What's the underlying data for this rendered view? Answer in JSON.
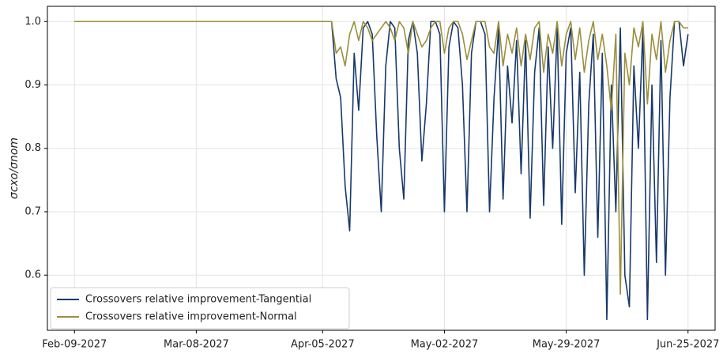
{
  "chart_data": {
    "type": "line",
    "y_label": "σcxo/σnom",
    "x": [
      "2027-02-09",
      "2027-03-08",
      "2027-04-05",
      "2027-04-06",
      "2027-04-07",
      "2027-04-08",
      "2027-04-09",
      "2027-04-10",
      "2027-04-11",
      "2027-04-12",
      "2027-04-13",
      "2027-04-14",
      "2027-04-15",
      "2027-04-16",
      "2027-04-17",
      "2027-04-18",
      "2027-04-19",
      "2027-04-20",
      "2027-04-21",
      "2027-04-22",
      "2027-04-23",
      "2027-04-24",
      "2027-04-25",
      "2027-04-26",
      "2027-04-27",
      "2027-04-28",
      "2027-04-29",
      "2027-04-30",
      "2027-05-01",
      "2027-05-02",
      "2027-05-03",
      "2027-05-04",
      "2027-05-05",
      "2027-05-06",
      "2027-05-07",
      "2027-05-08",
      "2027-05-09",
      "2027-05-10",
      "2027-05-11",
      "2027-05-12",
      "2027-05-13",
      "2027-05-14",
      "2027-05-15",
      "2027-05-16",
      "2027-05-17",
      "2027-05-18",
      "2027-05-19",
      "2027-05-20",
      "2027-05-21",
      "2027-05-22",
      "2027-05-23",
      "2027-05-24",
      "2027-05-25",
      "2027-05-26",
      "2027-05-27",
      "2027-05-28",
      "2027-05-29",
      "2027-05-30",
      "2027-05-31",
      "2027-06-01",
      "2027-06-02",
      "2027-06-03",
      "2027-06-04",
      "2027-06-05",
      "2027-06-06",
      "2027-06-07",
      "2027-06-08",
      "2027-06-09",
      "2027-06-10",
      "2027-06-11",
      "2027-06-12",
      "2027-06-13",
      "2027-06-14",
      "2027-06-15",
      "2027-06-16",
      "2027-06-17",
      "2027-06-18",
      "2027-06-19",
      "2027-06-20",
      "2027-06-21",
      "2027-06-22",
      "2027-06-23",
      "2027-06-24",
      "2027-06-25"
    ],
    "series": [
      {
        "name": "Crossovers relative improvement-Tangential",
        "color": "#17386b",
        "values": [
          1.0,
          1.0,
          1.0,
          1.0,
          1.0,
          0.91,
          0.88,
          0.74,
          0.67,
          0.95,
          0.86,
          0.99,
          1.0,
          0.98,
          0.82,
          0.7,
          0.93,
          1.0,
          0.99,
          0.8,
          0.72,
          0.97,
          1.0,
          0.95,
          0.78,
          0.87,
          1.0,
          1.0,
          0.98,
          0.7,
          0.96,
          1.0,
          0.99,
          0.9,
          0.7,
          0.95,
          1.0,
          1.0,
          0.98,
          0.7,
          0.88,
          0.99,
          0.72,
          0.93,
          0.84,
          0.97,
          0.76,
          0.97,
          0.69,
          0.92,
          0.99,
          0.71,
          0.96,
          0.8,
          0.99,
          0.68,
          0.95,
          0.99,
          0.73,
          0.92,
          0.6,
          0.87,
          0.98,
          0.66,
          0.95,
          0.53,
          0.9,
          0.7,
          0.99,
          0.6,
          0.55,
          0.93,
          0.8,
          0.99,
          0.53,
          0.9,
          0.62,
          0.97,
          0.6,
          0.88,
          1.0,
          1.0,
          0.93,
          0.98
        ]
      },
      {
        "name": "Crossovers relative improvement-Normal",
        "color": "#9b8f3a",
        "values": [
          1.0,
          1.0,
          1.0,
          1.0,
          1.0,
          0.95,
          0.96,
          0.93,
          0.98,
          1.0,
          0.97,
          1.0,
          0.99,
          0.97,
          0.98,
          0.99,
          1.0,
          0.99,
          0.97,
          1.0,
          0.99,
          0.95,
          1.0,
          0.98,
          0.96,
          0.97,
          0.99,
          1.0,
          1.0,
          0.95,
          0.99,
          1.0,
          1.0,
          0.98,
          0.94,
          0.97,
          1.0,
          1.0,
          1.0,
          0.96,
          0.95,
          1.0,
          0.93,
          0.98,
          0.95,
          0.99,
          0.93,
          0.98,
          0.94,
          0.99,
          1.0,
          0.92,
          0.98,
          0.95,
          1.0,
          0.93,
          0.98,
          1.0,
          0.94,
          0.99,
          0.92,
          0.97,
          1.0,
          0.94,
          0.98,
          0.93,
          0.86,
          0.98,
          0.57,
          0.95,
          0.9,
          0.99,
          0.96,
          1.0,
          0.87,
          0.98,
          0.94,
          1.0,
          0.92,
          0.97,
          1.0,
          1.0,
          0.99,
          0.99
        ]
      }
    ],
    "xlim": [
      "2027-02-03",
      "2027-07-01"
    ],
    "xticks": [
      {
        "value": "2027-02-09",
        "label": "Feb-09-2027"
      },
      {
        "value": "2027-03-08",
        "label": "Mar-08-2027"
      },
      {
        "value": "2027-04-05",
        "label": "Apr-05-2027"
      },
      {
        "value": "2027-05-02",
        "label": "May-02-2027"
      },
      {
        "value": "2027-05-29",
        "label": "May-29-2027"
      },
      {
        "value": "2027-06-25",
        "label": "Jun-25-2027"
      }
    ],
    "ylim": [
      0.513,
      1.024
    ],
    "yticks": [
      0.6,
      0.7,
      0.8,
      0.9,
      {
        "value": 1,
        "label": "1.0"
      }
    ],
    "grid": true,
    "legend": "lower left"
  }
}
